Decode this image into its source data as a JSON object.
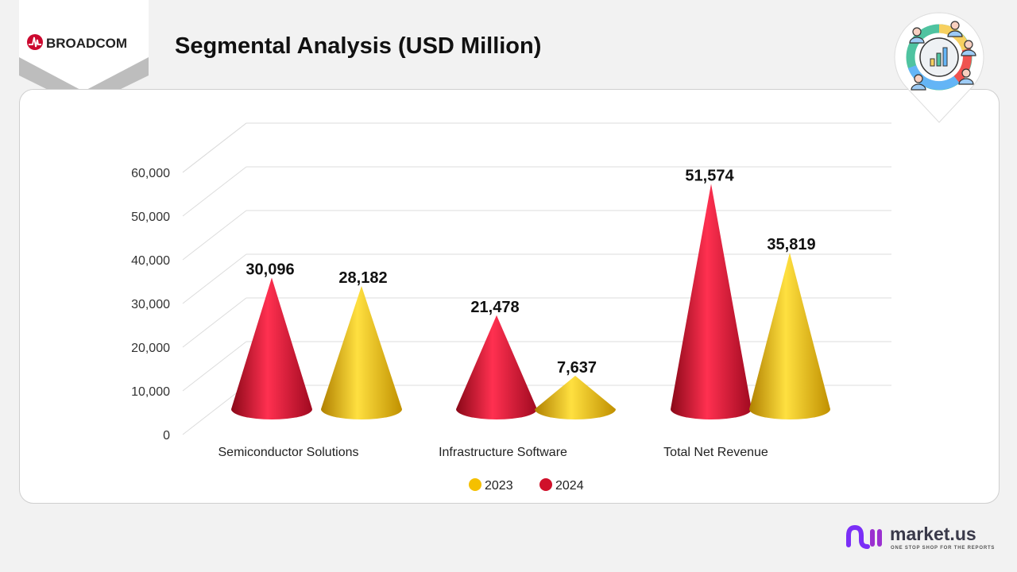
{
  "header": {
    "title": "Segmental Analysis (USD Million)",
    "brand": "BROADCOM"
  },
  "footer": {
    "brand": "market.us",
    "tagline": "ONE STOP SHOP FOR THE REPORTS"
  },
  "icon": "analytics-people-chart-icon",
  "chart_data": {
    "type": "bar",
    "style": "3d-cone",
    "categories": [
      "Semiconductor Solutions",
      "Infrastructure Software",
      "Total Net Revenue"
    ],
    "series": [
      {
        "name": "2024",
        "color": "#d0102a",
        "values": [
          30096,
          21478,
          51574
        ],
        "labels": [
          "30,096",
          "21,478",
          "51,574"
        ]
      },
      {
        "name": "2023",
        "color": "#f5c000",
        "values": [
          28182,
          7637,
          35819
        ],
        "labels": [
          "28,182",
          "7,637",
          "35,819"
        ]
      }
    ],
    "legend_order": [
      "2023",
      "2024"
    ],
    "yticks": [
      "0",
      "10,000",
      "20,000",
      "30,000",
      "40,000",
      "50,000",
      "60,000"
    ],
    "ylim": [
      0,
      60000
    ],
    "grid": true,
    "legend": "bottom"
  }
}
